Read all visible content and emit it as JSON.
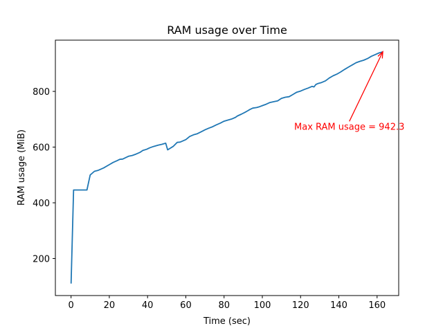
{
  "chart_data": {
    "type": "line",
    "title": "RAM usage over Time",
    "xlabel": "Time (sec)",
    "ylabel": "RAM usage (MiB)",
    "xlim": [
      -8.2,
      171.3
    ],
    "ylim": [
      67,
      984
    ],
    "xticks": [
      0,
      20,
      40,
      60,
      80,
      100,
      120,
      140,
      160
    ],
    "yticks": [
      200,
      400,
      600,
      800
    ],
    "grid": false,
    "series": [
      {
        "color": "#1f77b4",
        "x": [
          0,
          1.3,
          8.3,
          10,
          12.2,
          14,
          17,
          20,
          22,
          24,
          25.5,
          27,
          28.5,
          30,
          32,
          34,
          36,
          37.5,
          39.5,
          41,
          43,
          45.5,
          47.5,
          49.5,
          50.5,
          53.5,
          55.5,
          57,
          60,
          62,
          64,
          66,
          68,
          70,
          72,
          74,
          76,
          78,
          80,
          82,
          84,
          86,
          87,
          89,
          91,
          92,
          93.5,
          95,
          97,
          98.5,
          100,
          102,
          104,
          106,
          108,
          110,
          112,
          114,
          116,
          118,
          120,
          122,
          124,
          126,
          127,
          128,
          129,
          131,
          133,
          135,
          137,
          139,
          141,
          143,
          145,
          147,
          149,
          151,
          153,
          155,
          157,
          159,
          161,
          163
        ],
        "y": [
          110,
          446,
          446,
          500,
          513,
          516,
          525,
          537,
          545,
          551,
          556,
          557,
          562,
          567,
          570,
          575,
          581,
          588,
          592,
          597,
          602,
          607,
          610,
          614,
          590,
          603,
          617,
          618,
          627,
          638,
          644,
          648,
          655,
          662,
          668,
          673,
          680,
          686,
          693,
          697,
          701,
          707,
          712,
          718,
          725,
          729,
          735,
          740,
          742,
          745,
          749,
          754,
          760,
          763,
          766,
          775,
          779,
          781,
          789,
          797,
          801,
          807,
          812,
          818,
          816,
          825,
          828,
          832,
          838,
          848,
          856,
          862,
          870,
          879,
          887,
          895,
          903,
          908,
          912,
          918,
          926,
          932,
          938,
          942.3
        ]
      }
    ],
    "annotation": {
      "text": "Max RAM usage = 942.3",
      "point": [
        163,
        942.3
      ],
      "text_anchor": [
        145.5,
        675
      ],
      "color": "#ff0000"
    }
  }
}
